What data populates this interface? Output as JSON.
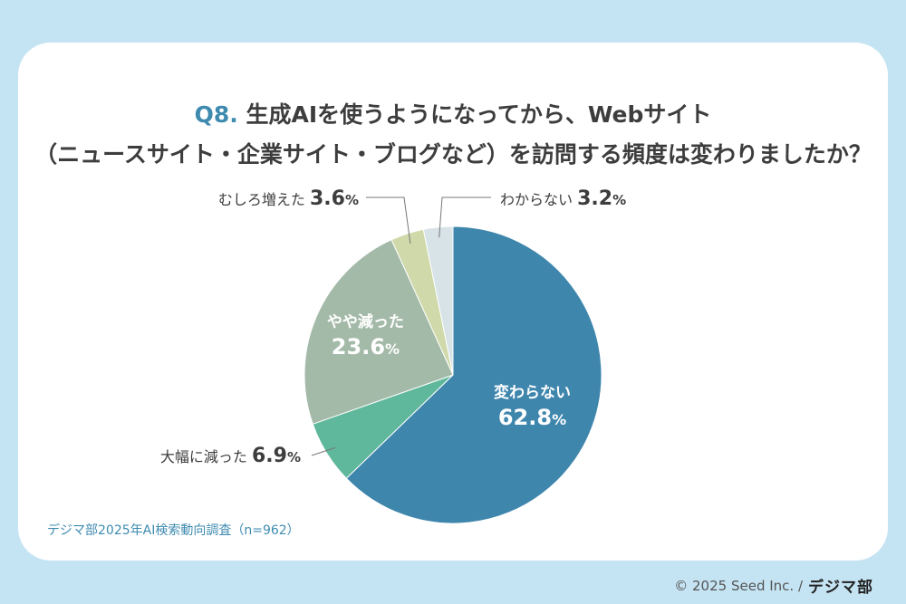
{
  "title": {
    "qnum": "Q8.",
    "line1": "生成AIを使うようになってから、Webサイト",
    "line2": "（ニュースサイト・企業サイト・ブログなど）を訪問する頻度は変わりましたか？"
  },
  "source": "デジマ部2025年AI検索動向調査（n=962）",
  "copyright": {
    "text": "© 2025 Seed Inc. /",
    "brand": "デジマ部"
  },
  "chart_data": {
    "type": "pie",
    "slices": [
      {
        "label": "変わらない",
        "value": 62.8,
        "pct": "62.8",
        "color": "#3f86ad"
      },
      {
        "label": "大幅に減った",
        "value": 6.9,
        "pct": "6.9",
        "color": "#5fb89b"
      },
      {
        "label": "やや減った",
        "value": 23.6,
        "pct": "23.6",
        "color": "#a4baa9"
      },
      {
        "label": "むしろ増えた",
        "value": 3.6,
        "pct": "3.6",
        "color": "#cfd9aa"
      },
      {
        "label": "わからない",
        "value": 3.2,
        "pct": "3.2",
        "color": "#d7e3e6"
      }
    ],
    "pct_symbol": "%"
  }
}
